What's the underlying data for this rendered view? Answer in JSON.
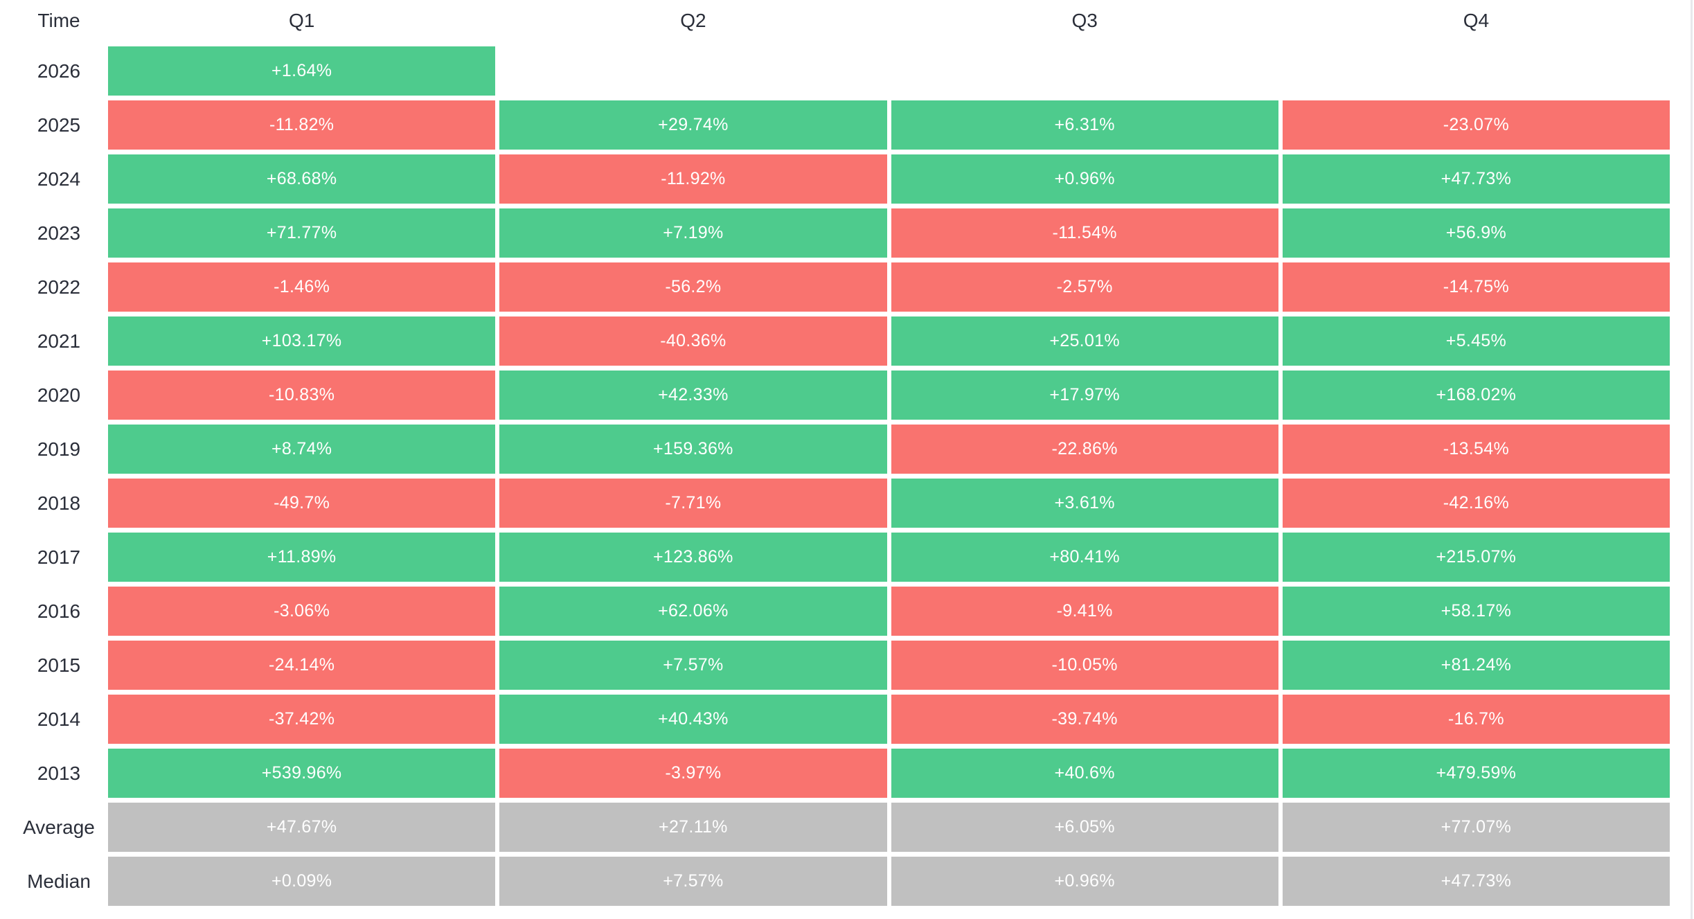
{
  "colors": {
    "positive": "#4ecb8d",
    "negative": "#f9736f",
    "summary": "#c0c0c0",
    "cell_text": "#ffffff",
    "label_text": "#2a2e39",
    "edge_line": "#e8e8ec"
  },
  "table": {
    "time_header": "Time",
    "columns": [
      "Q1",
      "Q2",
      "Q3",
      "Q4"
    ],
    "rows": [
      {
        "label": "2026",
        "type": "data",
        "values": [
          "+1.64%",
          null,
          null,
          null
        ]
      },
      {
        "label": "2025",
        "type": "data",
        "values": [
          "-11.82%",
          "+29.74%",
          "+6.31%",
          "-23.07%"
        ]
      },
      {
        "label": "2024",
        "type": "data",
        "values": [
          "+68.68%",
          "-11.92%",
          "+0.96%",
          "+47.73%"
        ]
      },
      {
        "label": "2023",
        "type": "data",
        "values": [
          "+71.77%",
          "+7.19%",
          "-11.54%",
          "+56.9%"
        ]
      },
      {
        "label": "2022",
        "type": "data",
        "values": [
          "-1.46%",
          "-56.2%",
          "-2.57%",
          "-14.75%"
        ]
      },
      {
        "label": "2021",
        "type": "data",
        "values": [
          "+103.17%",
          "-40.36%",
          "+25.01%",
          "+5.45%"
        ]
      },
      {
        "label": "2020",
        "type": "data",
        "values": [
          "-10.83%",
          "+42.33%",
          "+17.97%",
          "+168.02%"
        ]
      },
      {
        "label": "2019",
        "type": "data",
        "values": [
          "+8.74%",
          "+159.36%",
          "-22.86%",
          "-13.54%"
        ]
      },
      {
        "label": "2018",
        "type": "data",
        "values": [
          "-49.7%",
          "-7.71%",
          "+3.61%",
          "-42.16%"
        ]
      },
      {
        "label": "2017",
        "type": "data",
        "values": [
          "+11.89%",
          "+123.86%",
          "+80.41%",
          "+215.07%"
        ]
      },
      {
        "label": "2016",
        "type": "data",
        "values": [
          "-3.06%",
          "+62.06%",
          "-9.41%",
          "+58.17%"
        ]
      },
      {
        "label": "2015",
        "type": "data",
        "values": [
          "-24.14%",
          "+7.57%",
          "-10.05%",
          "+81.24%"
        ]
      },
      {
        "label": "2014",
        "type": "data",
        "values": [
          "-37.42%",
          "+40.43%",
          "-39.74%",
          "-16.7%"
        ]
      },
      {
        "label": "2013",
        "type": "data",
        "values": [
          "+539.96%",
          "-3.97%",
          "+40.6%",
          "+479.59%"
        ]
      },
      {
        "label": "Average",
        "type": "summary",
        "values": [
          "+47.67%",
          "+27.11%",
          "+6.05%",
          "+77.07%"
        ]
      },
      {
        "label": "Median",
        "type": "summary",
        "values": [
          "+0.09%",
          "+7.57%",
          "+0.96%",
          "+47.73%"
        ]
      }
    ]
  },
  "chart_data": {
    "type": "heatmap",
    "title": "",
    "x_categories": [
      "Q1",
      "Q2",
      "Q3",
      "Q4"
    ],
    "y_categories": [
      "2026",
      "2025",
      "2024",
      "2023",
      "2022",
      "2021",
      "2020",
      "2019",
      "2018",
      "2017",
      "2016",
      "2015",
      "2014",
      "2013",
      "Average",
      "Median"
    ],
    "values_percent": [
      [
        1.64,
        null,
        null,
        null
      ],
      [
        -11.82,
        29.74,
        6.31,
        -23.07
      ],
      [
        68.68,
        -11.92,
        0.96,
        47.73
      ],
      [
        71.77,
        7.19,
        -11.54,
        56.9
      ],
      [
        -1.46,
        -56.2,
        -2.57,
        -14.75
      ],
      [
        103.17,
        -40.36,
        25.01,
        5.45
      ],
      [
        -10.83,
        42.33,
        17.97,
        168.02
      ],
      [
        8.74,
        159.36,
        -22.86,
        -13.54
      ],
      [
        -49.7,
        -7.71,
        3.61,
        -42.16
      ],
      [
        11.89,
        123.86,
        80.41,
        215.07
      ],
      [
        -3.06,
        62.06,
        -9.41,
        58.17
      ],
      [
        -24.14,
        7.57,
        -10.05,
        81.24
      ],
      [
        -37.42,
        40.43,
        -39.74,
        -16.7
      ],
      [
        539.96,
        -3.97,
        40.6,
        479.59
      ],
      [
        47.67,
        27.11,
        6.05,
        77.07
      ],
      [
        0.09,
        7.57,
        0.96,
        47.73
      ]
    ],
    "legend_position": "none",
    "grid": false,
    "color_rule": "positive=green, negative=red, Average/Median rows=gray"
  }
}
